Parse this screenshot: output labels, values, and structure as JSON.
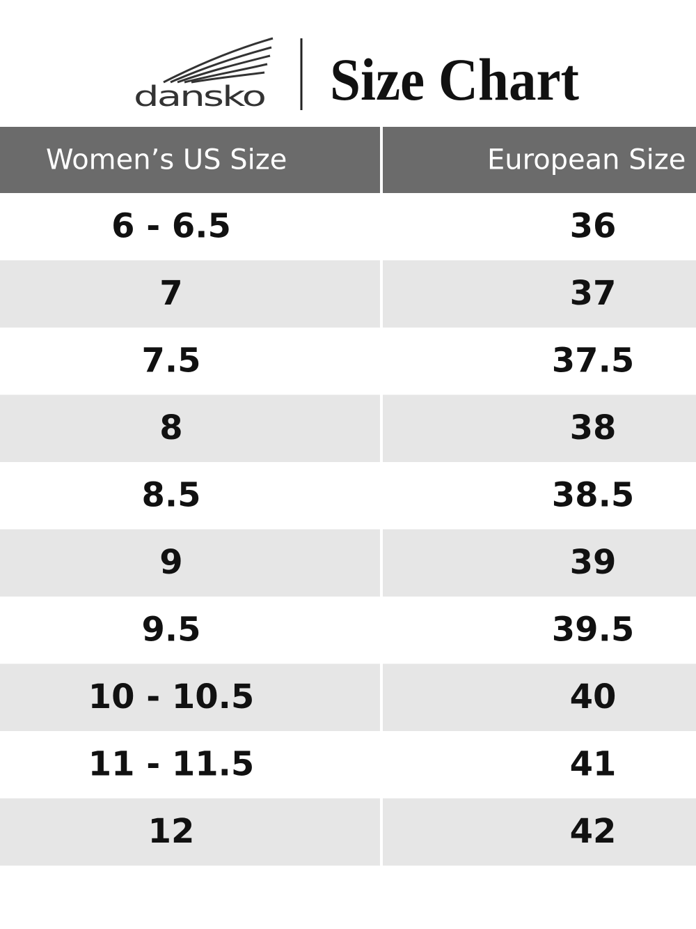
{
  "header": {
    "logo": "dansko",
    "title": "Size Chart"
  },
  "table": {
    "columns": [
      "Women’s US Size",
      "European Size"
    ],
    "rows": [
      [
        "6 - 6.5",
        "36"
      ],
      [
        "7",
        "37"
      ],
      [
        "7.5",
        "37.5"
      ],
      [
        "8",
        "38"
      ],
      [
        "8.5",
        "38.5"
      ],
      [
        "9",
        "39"
      ],
      [
        "9.5",
        "39.5"
      ],
      [
        "10 - 10.5",
        "40"
      ],
      [
        "11 - 11.5",
        "41"
      ],
      [
        "12",
        "42"
      ]
    ]
  }
}
